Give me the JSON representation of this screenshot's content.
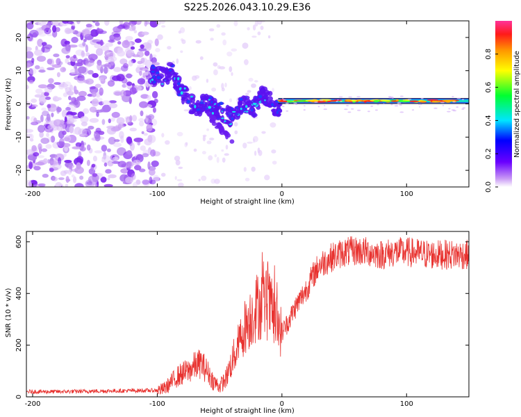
{
  "title": "S225.2026.043.10.29.E36",
  "chart_data": [
    {
      "type": "heatmap",
      "xlabel": "Height of straight line (km)",
      "ylabel": "Frequency (Hz)",
      "xlim": [
        -205,
        150
      ],
      "ylim": [
        -25,
        25
      ],
      "xticks": [
        -200,
        -100,
        0,
        100
      ],
      "yticks": [
        -20,
        -10,
        0,
        10,
        20
      ],
      "colorbar": {
        "label": "Normalized spectral amplitude",
        "range": [
          0,
          1
        ],
        "ticks": [
          "0.0",
          "0.2",
          "0.4",
          "0.6",
          "0.8"
        ],
        "tick_values": [
          0,
          0.2,
          0.4,
          0.6,
          0.8
        ]
      },
      "ridge": {
        "x": [
          -105,
          -95,
          -88,
          -80,
          -70,
          -60,
          -50,
          -42,
          -35,
          -28,
          -22,
          -15,
          -10,
          -5,
          0,
          10,
          30,
          50,
          70,
          90,
          110,
          130,
          150
        ],
        "y": [
          9,
          8,
          10,
          3,
          -1,
          0,
          -2,
          -4,
          -1,
          0,
          -1,
          3,
          1,
          -1,
          -1,
          0,
          0,
          0,
          0.5,
          0.5,
          0.8,
          0.8,
          1
        ]
      }
    },
    {
      "type": "line",
      "xlabel": "Height of straight line (km)",
      "ylabel": "SNR (10 * v/v)",
      "xlim": [
        -205,
        150
      ],
      "ylim": [
        0,
        640
      ],
      "xticks": [
        -200,
        -100,
        0,
        100
      ],
      "yticks": [
        0,
        200,
        400,
        600
      ],
      "series": [
        {
          "name": "SNR",
          "color": "#e8322f",
          "x": [
            -205,
            -180,
            -150,
            -120,
            -100,
            -95,
            -90,
            -85,
            -80,
            -75,
            -70,
            -65,
            -60,
            -55,
            -50,
            -45,
            -40,
            -35,
            -30,
            -25,
            -20,
            -15,
            -10,
            -5,
            0,
            5,
            10,
            15,
            20,
            25,
            30,
            40,
            50,
            60,
            70,
            80,
            90,
            100,
            110,
            120,
            130,
            140,
            150
          ],
          "y": [
            20,
            20,
            22,
            24,
            25,
            30,
            50,
            75,
            90,
            100,
            120,
            130,
            100,
            60,
            40,
            70,
            140,
            200,
            270,
            310,
            350,
            360,
            350,
            290,
            250,
            290,
            340,
            380,
            420,
            470,
            510,
            540,
            560,
            565,
            560,
            550,
            560,
            560,
            555,
            550,
            550,
            550,
            550
          ]
        }
      ]
    }
  ]
}
